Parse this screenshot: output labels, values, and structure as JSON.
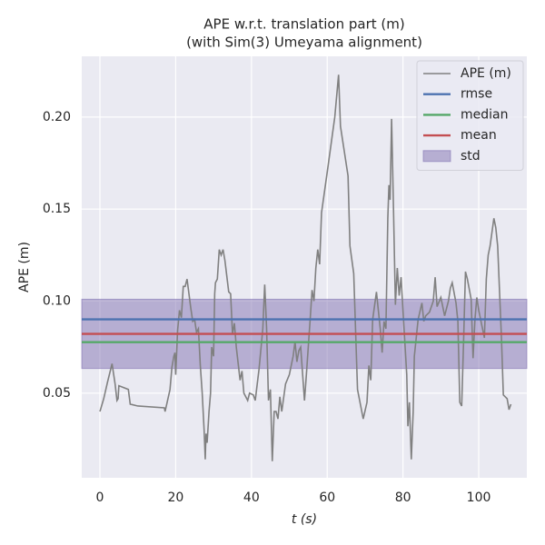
{
  "chart_data": {
    "type": "line",
    "title": [
      "APE w.r.t. translation part (m)",
      "(with Sim(3) Umeyama alignment)"
    ],
    "xlabel": "t (s)",
    "ylabel": "APE (m)",
    "xlim": [
      -4.8,
      112.7
    ],
    "ylim": [
      0.004,
      0.233
    ],
    "xticks": [
      0,
      20,
      40,
      60,
      80,
      100
    ],
    "yticks": [
      0.05,
      {
        "value": 0.1,
        "label": "0.10"
      },
      0.15,
      {
        "value": 0.2,
        "label": "0.20"
      }
    ],
    "grid": true,
    "legend": "upper right",
    "x": [
      0,
      1,
      2,
      3.2,
      4,
      4.5,
      4.8,
      5,
      7.5,
      8,
      10,
      17,
      17.2,
      18.5,
      19,
      19.5,
      19.8,
      20,
      20.5,
      21,
      21.5,
      22,
      22.5,
      23,
      24,
      24.5,
      25,
      25.5,
      26,
      26.5,
      27,
      27.5,
      27.8,
      28,
      28.3,
      28.8,
      29.2,
      29.5,
      30,
      30.3,
      30.5,
      31,
      31.5,
      32,
      32.5,
      33,
      34,
      34.5,
      35,
      35.5,
      36,
      36.5,
      37,
      37.5,
      38,
      39,
      39.5,
      40.5,
      41,
      42,
      43,
      43.5,
      44,
      44.5,
      45,
      45.5,
      46,
      46.5,
      47,
      47.5,
      48,
      49,
      50,
      51,
      51.5,
      52,
      52.5,
      53,
      54,
      54.5,
      55.5,
      56,
      56.5,
      57,
      57.5,
      58,
      58.5,
      60,
      62,
      63,
      63.5,
      65.5,
      66,
      67,
      68,
      69.5,
      70.5,
      71,
      71.5,
      72,
      73,
      74,
      74.5,
      75,
      75.5,
      76,
      76.3,
      76.6,
      77,
      77.5,
      78,
      78.5,
      79,
      79.5,
      80,
      81,
      81.3,
      81.7,
      82.2,
      82.7,
      83,
      83.5,
      84,
      85,
      85.5,
      86,
      87,
      88,
      88.5,
      89,
      90,
      91,
      92,
      92.5,
      93,
      94,
      94.5,
      95,
      95.5,
      96,
      96.5,
      97,
      98,
      98.5,
      99,
      99.5,
      100,
      101.5,
      102,
      102.5,
      103,
      104,
      104.5,
      105,
      106,
      106.5,
      107.5,
      108,
      108.5
    ],
    "series": [
      {
        "name": "APE (m)",
        "color": "#808080",
        "values": [
          0.04,
          0.047,
          0.056,
          0.066,
          0.055,
          0.046,
          0.047,
          0.054,
          0.052,
          0.044,
          0.043,
          0.042,
          0.04,
          0.052,
          0.064,
          0.07,
          0.072,
          0.06,
          0.084,
          0.095,
          0.091,
          0.108,
          0.108,
          0.112,
          0.096,
          0.089,
          0.09,
          0.083,
          0.085,
          0.065,
          0.05,
          0.03,
          0.014,
          0.028,
          0.023,
          0.04,
          0.05,
          0.075,
          0.07,
          0.104,
          0.11,
          0.112,
          0.128,
          0.125,
          0.128,
          0.122,
          0.105,
          0.104,
          0.082,
          0.088,
          0.075,
          0.066,
          0.057,
          0.062,
          0.05,
          0.046,
          0.05,
          0.049,
          0.046,
          0.063,
          0.085,
          0.109,
          0.085,
          0.046,
          0.052,
          0.013,
          0.04,
          0.04,
          0.036,
          0.048,
          0.04,
          0.055,
          0.06,
          0.07,
          0.078,
          0.067,
          0.073,
          0.075,
          0.046,
          0.06,
          0.09,
          0.106,
          0.1,
          0.118,
          0.128,
          0.12,
          0.148,
          0.17,
          0.2,
          0.223,
          0.195,
          0.168,
          0.13,
          0.115,
          0.052,
          0.036,
          0.045,
          0.065,
          0.057,
          0.09,
          0.105,
          0.085,
          0.072,
          0.089,
          0.085,
          0.145,
          0.163,
          0.155,
          0.199,
          0.15,
          0.098,
          0.118,
          0.103,
          0.113,
          0.095,
          0.06,
          0.032,
          0.045,
          0.014,
          0.04,
          0.07,
          0.08,
          0.09,
          0.099,
          0.089,
          0.092,
          0.094,
          0.1,
          0.113,
          0.097,
          0.102,
          0.092,
          0.1,
          0.107,
          0.11,
          0.099,
          0.089,
          0.045,
          0.043,
          0.078,
          0.116,
          0.112,
          0.101,
          0.069,
          0.09,
          0.102,
          0.095,
          0.08,
          0.112,
          0.125,
          0.13,
          0.145,
          0.14,
          0.13,
          0.08,
          0.049,
          0.047,
          0.041,
          0.044
        ]
      }
    ],
    "stats": [
      {
        "name": "rmse",
        "color": "#4c72b0",
        "value": 0.0901
      },
      {
        "name": "median",
        "color": "#55a868",
        "value": 0.0777
      },
      {
        "name": "mean",
        "color": "#c44e52",
        "value": 0.0822
      }
    ],
    "std": {
      "name": "std",
      "color": "#8172b2",
      "value": 0.0188
    }
  }
}
